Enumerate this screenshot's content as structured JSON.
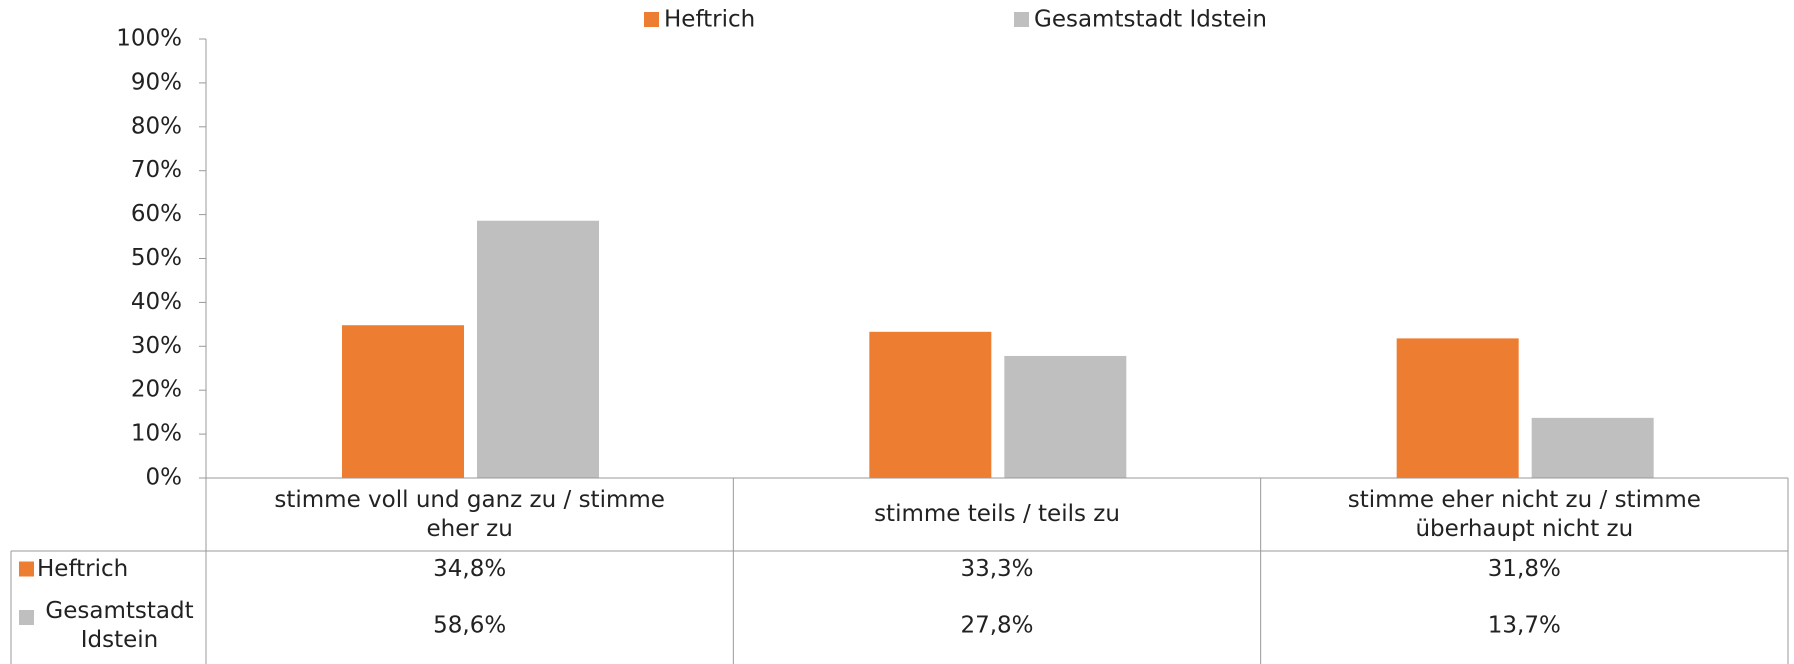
{
  "chart_data": {
    "type": "bar",
    "categories": [
      "stimme voll und ganz zu / stimme eher zu",
      "stimme teils / teils zu",
      "stimme eher nicht zu / stimme überhaupt nicht zu"
    ],
    "series": [
      {
        "name": "Heftrich",
        "color": "#ed7d31",
        "values": [
          34.8,
          33.3,
          31.8
        ],
        "value_labels": [
          "34,8%",
          "33,3%",
          "31,8%"
        ]
      },
      {
        "name": "Gesamtstadt Idstein",
        "color": "#bfbfbf",
        "values": [
          58.6,
          27.8,
          13.7
        ],
        "value_labels": [
          "58,6%",
          "27,8%",
          "13,7%"
        ]
      }
    ],
    "ylim": [
      0,
      100
    ],
    "yticks": [
      {
        "value": 0,
        "label": "0%"
      },
      {
        "value": 10,
        "label": "10%"
      },
      {
        "value": 20,
        "label": "20%"
      },
      {
        "value": 30,
        "label": "30%"
      },
      {
        "value": 40,
        "label": "40%"
      },
      {
        "value": 50,
        "label": "50%"
      },
      {
        "value": 60,
        "label": "60%"
      },
      {
        "value": 70,
        "label": "70%"
      },
      {
        "value": 80,
        "label": "80%"
      },
      {
        "value": 90,
        "label": "90%"
      },
      {
        "value": 100,
        "label": "100%"
      }
    ],
    "grid": false,
    "legend": "top",
    "data_table": true
  }
}
